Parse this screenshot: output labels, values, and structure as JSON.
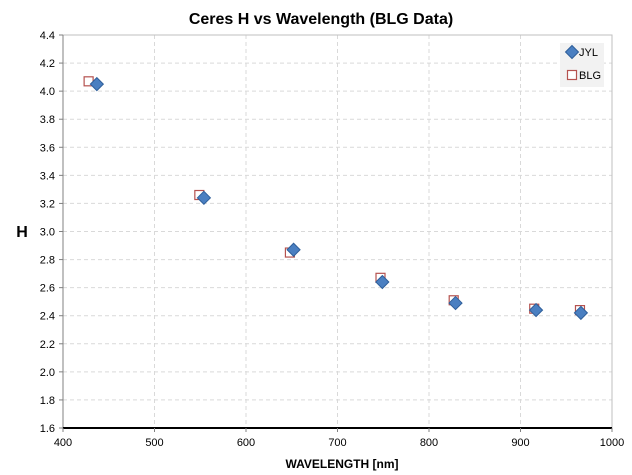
{
  "chart_data": {
    "type": "scatter",
    "title": "Ceres H vs Wavelength (BLG Data)",
    "xlabel": "WAVELENGTH [nm]",
    "ylabel": "H",
    "xlim": [
      400,
      1000
    ],
    "ylim": [
      1.6,
      4.4
    ],
    "xticks": [
      "400",
      "500",
      "600",
      "700",
      "800",
      "900",
      "1000"
    ],
    "yticks": [
      "1.6",
      "1.8",
      "2.0",
      "2.2",
      "2.4",
      "2.6",
      "2.8",
      "3.0",
      "3.2",
      "3.4",
      "3.6",
      "3.8",
      "4.0",
      "4.2",
      "4.4"
    ],
    "grid": true,
    "legend_position": "top-right",
    "series": [
      {
        "name": "JYL",
        "marker": "diamond",
        "color": "#4a7fc1",
        "x": [
          437,
          554,
          652,
          749,
          829,
          917,
          966
        ],
        "y": [
          4.05,
          3.24,
          2.87,
          2.64,
          2.49,
          2.44,
          2.42
        ]
      },
      {
        "name": "BLG",
        "marker": "square-open",
        "color": "#b5524f",
        "x": [
          428,
          549,
          648,
          747,
          827,
          915,
          965
        ],
        "y": [
          4.07,
          3.26,
          2.85,
          2.67,
          2.51,
          2.45,
          2.44
        ]
      }
    ]
  }
}
